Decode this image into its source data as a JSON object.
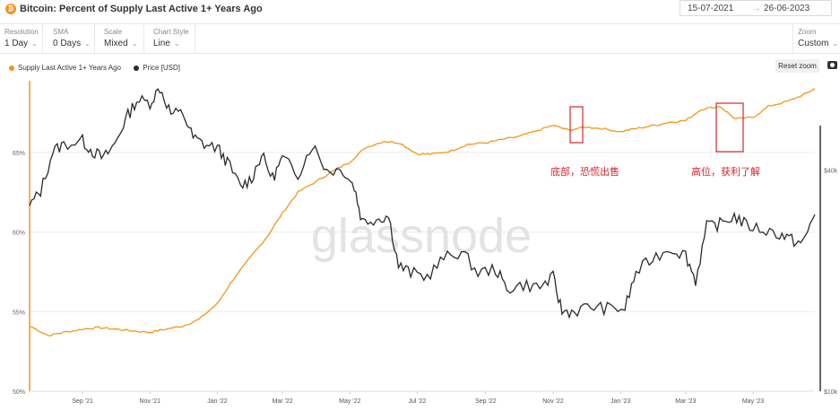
{
  "header": {
    "title": "Bitcoin: Percent of Supply Last Active 1+ Years Ago",
    "btc_symbol": "₿",
    "date_from": "15-07-2021",
    "date_arrow": "→",
    "date_to": "26-06-2023"
  },
  "controls": [
    {
      "label": "Resolution",
      "value": "1 Day"
    },
    {
      "label": "SMA",
      "value": "0 Days"
    },
    {
      "label": "Scale",
      "value": "Mixed"
    },
    {
      "label": "Chart Style",
      "value": "Line"
    }
  ],
  "zoom": {
    "label": "Zoom",
    "value": "Custom"
  },
  "reset_zoom_label": "Reset zoom",
  "watermark": "glassnode",
  "chart_data": {
    "type": "line",
    "title": "Bitcoin: Percent of Supply Last Active 1+ Years Ago",
    "x_tick_labels": [
      "Sep '21",
      "Nov '21",
      "Jan '22",
      "Mar '22",
      "May '22",
      "Jul '22",
      "Sep '22",
      "Nov '22",
      "Jan '23",
      "Mar '23",
      "May '23"
    ],
    "y_left": {
      "ticks": [
        "50%",
        "55%",
        "60%",
        "65%"
      ],
      "range": [
        50,
        69.5
      ]
    },
    "y_right": {
      "ticks": [
        "$10k",
        "$40k"
      ],
      "scale": "log",
      "range": [
        10000,
        70000
      ]
    },
    "legend_position": "top-left",
    "grid": "horizontal",
    "series": [
      {
        "name": "Supply Last Active 1+ Years Ago",
        "color": "#f7931a",
        "axis": "left",
        "unit": "%",
        "x": [
          "2021-07-15",
          "2021-08-01",
          "2021-08-15",
          "2021-09-01",
          "2021-09-15",
          "2021-10-01",
          "2021-10-15",
          "2021-11-01",
          "2021-11-15",
          "2021-12-01",
          "2021-12-15",
          "2022-01-01",
          "2022-01-15",
          "2022-02-01",
          "2022-02-15",
          "2022-03-01",
          "2022-03-15",
          "2022-04-01",
          "2022-04-15",
          "2022-05-01",
          "2022-05-15",
          "2022-06-01",
          "2022-06-15",
          "2022-07-01",
          "2022-07-15",
          "2022-08-01",
          "2022-08-15",
          "2022-09-01",
          "2022-09-15",
          "2022-10-01",
          "2022-10-15",
          "2022-11-01",
          "2022-11-15",
          "2022-12-01",
          "2022-12-15",
          "2023-01-01",
          "2023-01-15",
          "2023-02-01",
          "2023-02-15",
          "2023-03-01",
          "2023-03-15",
          "2023-04-01",
          "2023-04-15",
          "2023-05-01",
          "2023-05-15",
          "2023-06-01",
          "2023-06-15",
          "2023-06-26"
        ],
        "y": [
          54.1,
          53.5,
          53.7,
          53.9,
          54.0,
          53.9,
          53.8,
          53.7,
          53.9,
          54.1,
          54.5,
          55.5,
          57.0,
          58.5,
          59.7,
          61.2,
          62.5,
          63.2,
          63.8,
          64.4,
          65.3,
          65.7,
          65.6,
          64.9,
          64.9,
          65.1,
          65.5,
          65.6,
          65.8,
          66.0,
          66.3,
          66.7,
          66.4,
          66.6,
          66.5,
          66.3,
          66.5,
          66.7,
          66.9,
          67.0,
          67.7,
          67.9,
          67.1,
          67.2,
          67.9,
          68.2,
          68.6,
          69.0
        ]
      },
      {
        "name": "Price [USD]",
        "color": "#2b2b2b",
        "axis": "right",
        "unit": "USD",
        "x": [
          "2021-07-15",
          "2021-07-25",
          "2021-08-05",
          "2021-08-15",
          "2021-09-01",
          "2021-09-10",
          "2021-09-20",
          "2021-09-30",
          "2021-10-10",
          "2021-10-20",
          "2021-11-01",
          "2021-11-10",
          "2021-11-20",
          "2021-12-01",
          "2021-12-10",
          "2021-12-20",
          "2022-01-01",
          "2022-01-10",
          "2022-01-22",
          "2022-02-01",
          "2022-02-10",
          "2022-02-20",
          "2022-03-01",
          "2022-03-15",
          "2022-03-28",
          "2022-04-10",
          "2022-04-25",
          "2022-05-05",
          "2022-05-12",
          "2022-05-25",
          "2022-06-05",
          "2022-06-14",
          "2022-06-25",
          "2022-07-10",
          "2022-07-25",
          "2022-08-10",
          "2022-08-25",
          "2022-09-10",
          "2022-09-20",
          "2022-10-05",
          "2022-10-20",
          "2022-11-01",
          "2022-11-09",
          "2022-11-20",
          "2022-12-05",
          "2022-12-20",
          "2023-01-05",
          "2023-01-15",
          "2023-01-30",
          "2023-02-15",
          "2023-03-01",
          "2023-03-10",
          "2023-03-20",
          "2023-04-01",
          "2023-04-14",
          "2023-04-25",
          "2023-05-10",
          "2023-05-25",
          "2023-06-05",
          "2023-06-15",
          "2023-06-26"
        ],
        "y": [
          32000,
          35000,
          45000,
          47000,
          48000,
          45000,
          43000,
          47000,
          55000,
          62000,
          61000,
          67000,
          57000,
          57000,
          49000,
          47000,
          46000,
          42000,
          36000,
          38000,
          44000,
          38000,
          43000,
          39000,
          47000,
          40000,
          40000,
          36000,
          29000,
          29500,
          30000,
          22000,
          21000,
          20500,
          23000,
          24000,
          21000,
          21500,
          19000,
          19500,
          19200,
          20400,
          16500,
          16500,
          17000,
          16800,
          16800,
          21000,
          23000,
          24500,
          23500,
          20000,
          28000,
          28500,
          30000,
          28300,
          27500,
          26800,
          25800,
          25200,
          30500
        ]
      }
    ],
    "annotations": [
      {
        "text": "底部，恐慌出售",
        "x": "2022-11-15",
        "color": "#d9252b"
      },
      {
        "text": "高位，获利了解",
        "x": "2023-04-15",
        "color": "#d9252b"
      }
    ]
  }
}
